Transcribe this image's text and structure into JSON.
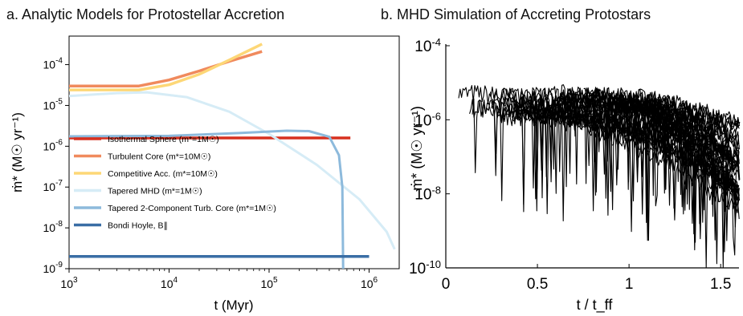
{
  "panel_a_title": "a. Analytic Models for Protostellar Accretion",
  "panel_b_title": "b. MHD Simulation of Accreting Protostars",
  "chart_data": [
    {
      "type": "line",
      "title": "a. Analytic Models for Protostellar Accretion",
      "xlabel": "t (Myr)",
      "ylabel": "ṁ* (M☉ yr⁻¹)",
      "xscale": "log",
      "yscale": "log",
      "xlim": [
        1000,
        2000000
      ],
      "ylim": [
        1e-09,
        0.0005
      ],
      "x_ticks": [
        "10^3",
        "10^4",
        "10^5",
        "10^6"
      ],
      "y_ticks": [
        "10^-9",
        "10^-8",
        "10^-7",
        "10^-6",
        "10^-5",
        "10^-4"
      ],
      "legend_position": "center-left",
      "series": [
        {
          "name": "Isothermal Sphere (m*=1M☉)",
          "color": "#d7301f",
          "x": [
            1000,
            650000
          ],
          "y": [
            1.6e-06,
            1.6e-06
          ]
        },
        {
          "name": "Turbulent Core (m*=10M☉)",
          "color": "#f08a5d",
          "x": [
            1000,
            5000,
            10000,
            20000,
            40000,
            85000
          ],
          "y": [
            3e-05,
            3e-05,
            4.2e-05,
            7e-05,
            0.00012,
            0.00021
          ]
        },
        {
          "name": "Competitive Acc. (m*=10M☉)",
          "color": "#fdd777",
          "x": [
            1000,
            5000,
            10000,
            20000,
            40000,
            85000
          ],
          "y": [
            2.4e-05,
            2.4e-05,
            3.2e-05,
            5.8e-05,
            0.00013,
            0.00032
          ]
        },
        {
          "name": "Tapered MHD (m*=1M☉)",
          "color": "#d6ecf6",
          "x": [
            1000,
            3000,
            6000,
            15000,
            40000,
            100000,
            300000,
            800000,
            1500000,
            1800000
          ],
          "y": [
            1.7e-05,
            2e-05,
            2.1e-05,
            1.6e-05,
            7e-06,
            2e-06,
            3.5e-07,
            5e-08,
            8e-09,
            3e-09
          ]
        },
        {
          "name": "Tapered 2-Component Turb. Core (m*=1M☉)",
          "color": "#8dbadc",
          "x": [
            1000,
            10000,
            50000,
            150000,
            250000,
            400000,
            500000,
            540000,
            550000
          ],
          "y": [
            1.75e-06,
            1.8e-06,
            2.1e-06,
            2.4e-06,
            2.35e-06,
            1.7e-06,
            6e-07,
            1e-07,
            1e-09
          ]
        },
        {
          "name": "Bondi Hoyle, B∥",
          "color": "#3a6ea5",
          "x": [
            1000,
            1000000
          ],
          "y": [
            2e-09,
            2e-09
          ]
        }
      ]
    },
    {
      "type": "line",
      "title": "b. MHD Simulation of Accreting Protostars",
      "xlabel": "t / t_ff",
      "ylabel": "ṁ* (M☉ yr⁻¹)",
      "yscale": "log",
      "xlim": [
        0,
        1.6
      ],
      "ylim": [
        1e-10,
        0.0001
      ],
      "x_ticks": [
        "0",
        "0.5",
        "1",
        "1.5"
      ],
      "y_ticks": [
        "10^-10",
        "10^-8",
        "10^-6",
        "10^-4"
      ],
      "series_color": "#000000",
      "series_count": 36
    }
  ]
}
